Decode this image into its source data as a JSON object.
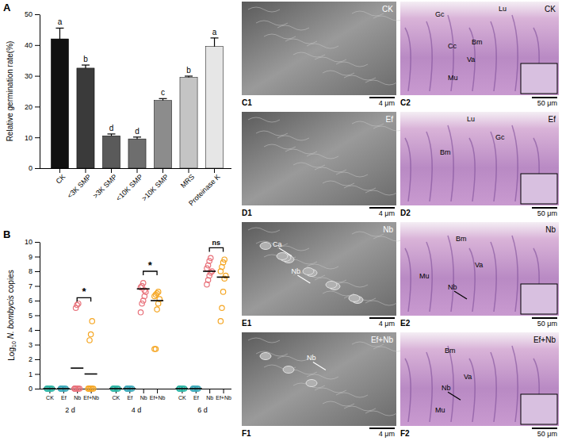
{
  "chart_data": [
    {
      "panel": "A",
      "type": "bar",
      "y_label": "Relative germination rate(%)",
      "categories": [
        "CK",
        "<3K SMP",
        ">3K SMP",
        "<10K SMP",
        ">10K SMP",
        "MRS",
        "Proteinase K"
      ],
      "values": [
        42,
        32.5,
        10.5,
        9.5,
        22,
        29.5,
        39.5
      ],
      "errors": [
        3.5,
        1,
        0.6,
        0.6,
        0.6,
        0.4,
        2.8
      ],
      "letters": [
        "a",
        "b",
        "d",
        "d",
        "c",
        "b",
        "a"
      ],
      "colors": [
        "#111111",
        "#3a3a3a",
        "#5a5a5a",
        "#6e6e6e",
        "#8c8c8c",
        "#c4c4c4",
        "#e6e6e6"
      ],
      "ylim": [
        0,
        50
      ],
      "yticks": [
        0,
        10,
        20,
        30,
        40,
        50
      ]
    },
    {
      "panel": "B",
      "type": "scatter",
      "marker": "open-circle",
      "y_label": [
        "Log",
        "10",
        "N. bombycis",
        "copies"
      ],
      "categories": [
        "CK",
        "Ef",
        "Nb",
        "Ef+Nb",
        "CK",
        "Ef",
        "Nb",
        "Ef+Nb",
        "CK",
        "Ef",
        "Nb",
        "Ef+Nb"
      ],
      "groups": [
        "2 d",
        "4 d",
        "6 d"
      ],
      "points": [
        [
          0,
          0,
          0,
          0,
          0,
          0
        ],
        [
          0,
          0,
          0,
          0,
          0,
          0
        ],
        [
          0,
          0,
          0,
          0,
          0,
          0,
          5.5,
          5.7,
          5.8
        ],
        [
          0,
          0,
          0,
          0,
          0,
          0,
          3.3,
          3.7,
          4.6
        ],
        [
          0,
          0,
          0,
          0,
          0,
          0
        ],
        [
          0,
          0,
          0,
          0,
          0,
          0
        ],
        [
          5.2,
          5.8,
          6.0,
          6.3,
          6.6,
          6.9,
          7.0,
          7.2,
          6.7
        ],
        [
          2.7,
          2.7,
          5.4,
          5.8,
          6.1,
          6.3,
          6.4,
          6.5,
          6.6
        ],
        [
          0,
          0,
          0,
          0,
          0,
          0
        ],
        [
          0,
          0,
          0,
          0,
          0,
          0
        ],
        [
          7.1,
          7.4,
          7.7,
          7.9,
          8.0,
          8.2,
          8.4,
          8.7,
          8.9
        ],
        [
          4.6,
          5.5,
          6.6,
          7.5,
          7.7,
          8.0,
          8.3,
          8.6,
          8.8
        ]
      ],
      "means": [
        0,
        0,
        1.4,
        1.0,
        0,
        0,
        6.8,
        6.0,
        0,
        0,
        8.0,
        7.6
      ],
      "colors": [
        "#2bb3a3",
        "#3aa8b8",
        "#e8717a",
        "#f5a623",
        "#2bb3a3",
        "#3aa8b8",
        "#e8717a",
        "#f5a623",
        "#2bb3a3",
        "#3aa8b8",
        "#e8717a",
        "#f5a623"
      ],
      "significance": [
        {
          "text": "*",
          "categories": [
            2,
            3
          ],
          "y": 6.2
        },
        {
          "text": "*",
          "categories": [
            6,
            7
          ],
          "y": 8.0
        },
        {
          "text": "ns",
          "categories": [
            10,
            11
          ],
          "y": 9.6
        }
      ],
      "ylim": [
        0,
        10
      ],
      "yticks": [
        0,
        1,
        2,
        3,
        4,
        5,
        6,
        7,
        8,
        9,
        10
      ]
    }
  ],
  "panels": [
    {
      "label": "C1",
      "tag": "CK",
      "scale_bar": "4 μm",
      "labels": []
    },
    {
      "label": "C2",
      "tag": "CK",
      "scale_bar": "50 μm",
      "labels": [
        "Gc",
        "Lu",
        "Cc",
        "Bm",
        "Va",
        "Mu"
      ]
    },
    {
      "label": "D1",
      "tag": "Ef",
      "scale_bar": "4 μm",
      "labels": []
    },
    {
      "label": "D2",
      "tag": "Ef",
      "scale_bar": "50 μm",
      "labels": [
        "Lu",
        "Gc",
        "Bm"
      ]
    },
    {
      "label": "E1",
      "tag": "Nb",
      "scale_bar": "4 μm",
      "labels": [
        "Ca",
        "Nb"
      ]
    },
    {
      "label": "E2",
      "tag": "Nb",
      "scale_bar": "50 μm",
      "labels": [
        "Bm",
        "Va",
        "Nb",
        "Mu"
      ]
    },
    {
      "label": "F1",
      "tag": "Ef+Nb",
      "scale_bar": "4 μm",
      "labels": [
        "Nb"
      ]
    },
    {
      "label": "F2",
      "tag": "Ef+Nb",
      "scale_bar": "50 μm",
      "labels": [
        "Bm",
        "Va",
        "Nb",
        "Mu"
      ]
    }
  ]
}
